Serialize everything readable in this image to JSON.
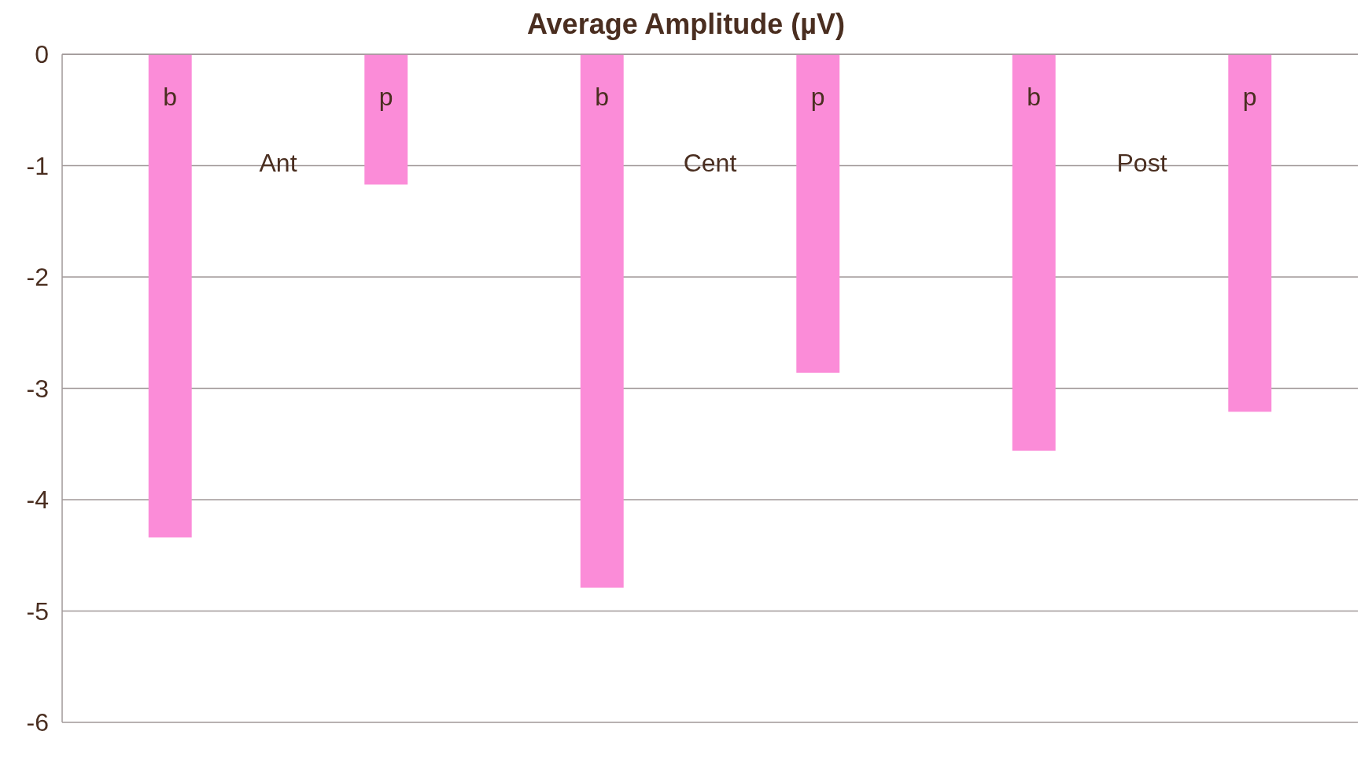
{
  "chart_data": {
    "type": "bar",
    "title": "Average Amplitude (µV)",
    "categories": [
      "b",
      "p",
      "b",
      "p",
      "b",
      "p"
    ],
    "values": [
      -4.34,
      -1.17,
      -4.79,
      -2.86,
      -3.56,
      -3.21
    ],
    "color": "#fb8cd8",
    "annotations": [
      "Ant",
      "Cent",
      "Post"
    ],
    "ylim": [
      -6,
      0
    ],
    "yticks": [
      0,
      -1,
      -2,
      -3,
      -4,
      -5,
      -6
    ],
    "grid": "y"
  }
}
